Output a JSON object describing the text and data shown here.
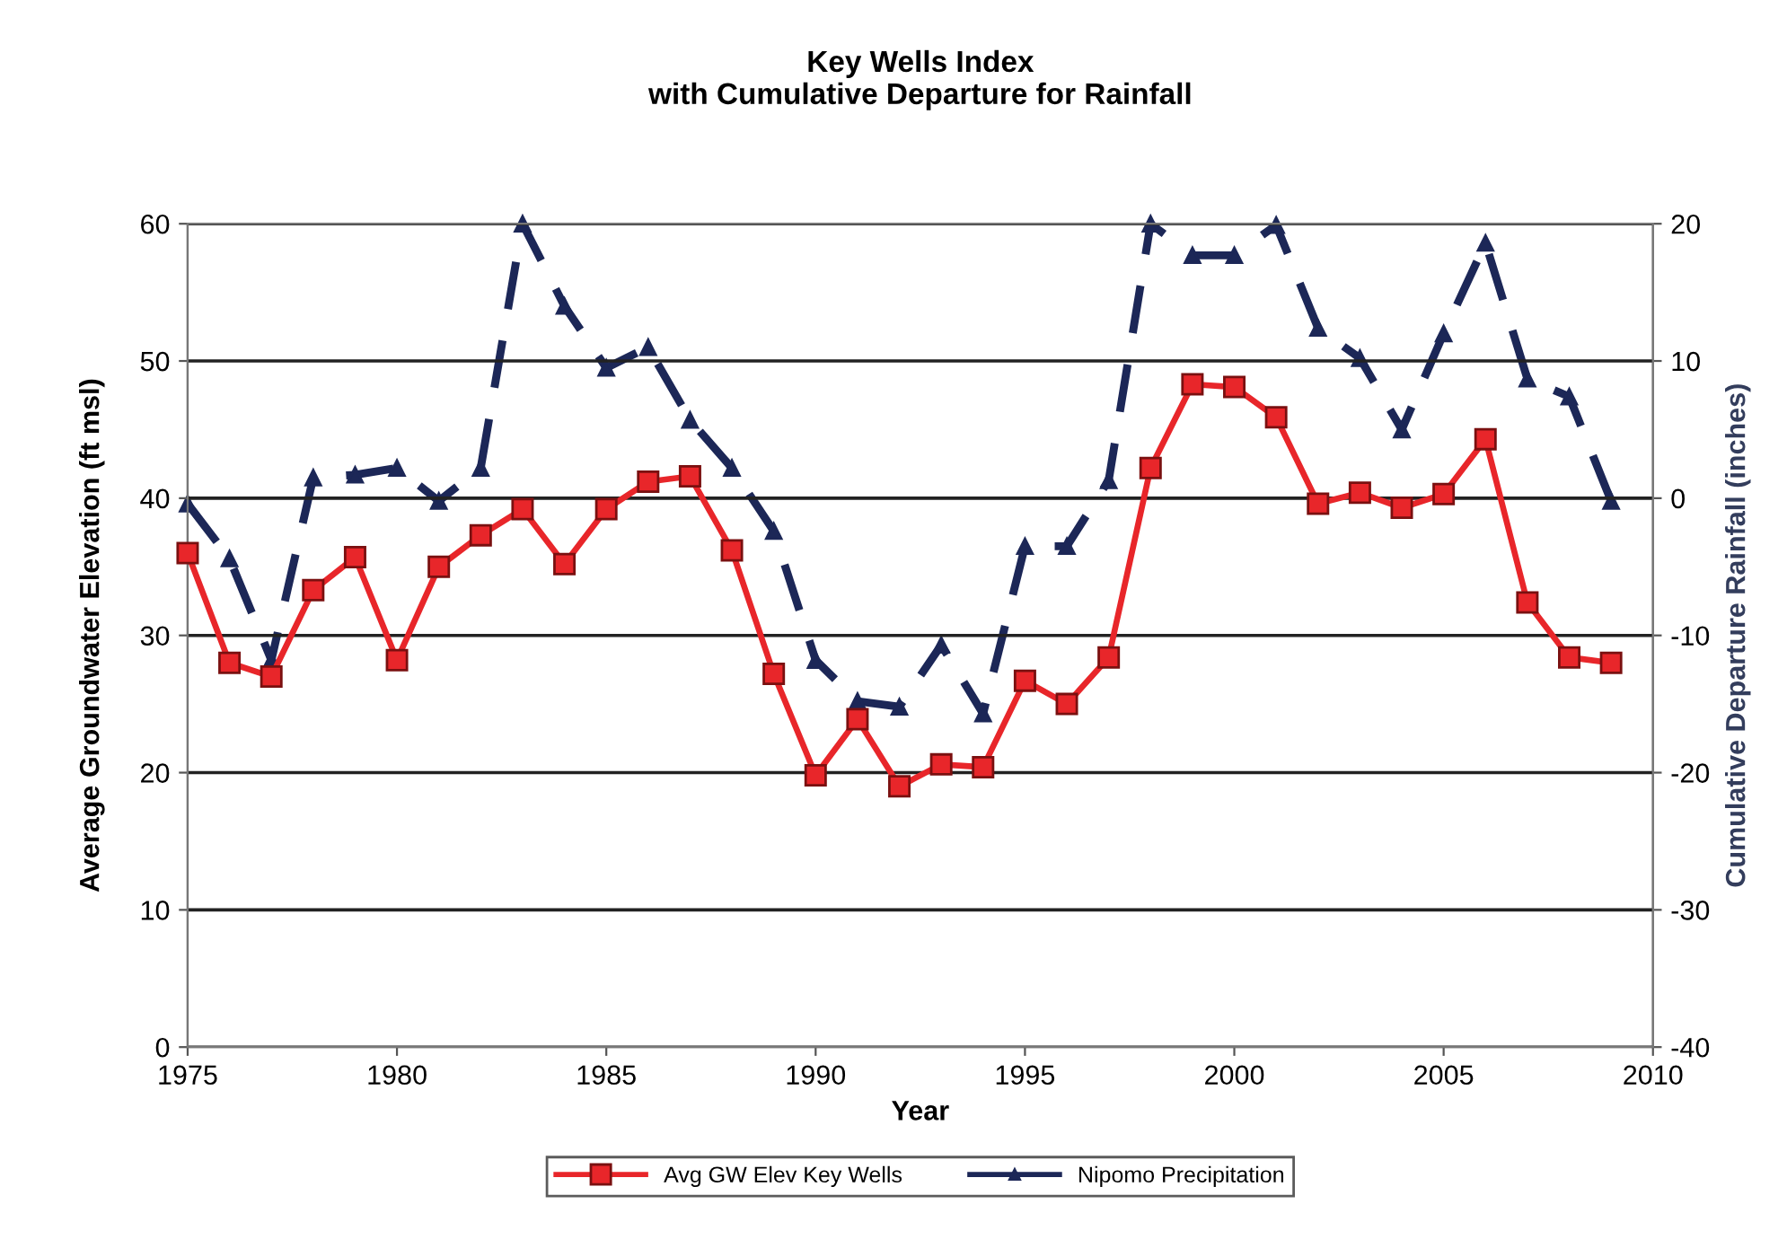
{
  "chart_data": {
    "type": "line",
    "title": "Key Wells Index\nwith Cumulative Departure for Rainfall",
    "xlabel": "Year",
    "ylabel": "Average Groundwater Elevation (ft msl)",
    "y2label": "Cumulative Departure Rainfall (inches)",
    "x": [
      1975,
      1976,
      1977,
      1978,
      1979,
      1980,
      1981,
      1982,
      1983,
      1984,
      1985,
      1986,
      1987,
      1988,
      1989,
      1990,
      1991,
      1992,
      1993,
      1994,
      1995,
      1996,
      1997,
      1998,
      1999,
      2000,
      2001,
      2002,
      2003,
      2004,
      2005,
      2006,
      2007,
      2008,
      2009
    ],
    "series": [
      {
        "name": "Avg GW Elev Key Wells",
        "color": "#e8262a",
        "marker": "square",
        "line_style": "solid",
        "values": [
          36,
          28,
          27,
          33.3,
          35.7,
          28.2,
          35,
          37.3,
          39.2,
          35.2,
          39.2,
          41.2,
          41.6,
          36.2,
          27.2,
          19.8,
          23.9,
          19,
          20.6,
          20.4,
          26.7,
          25,
          28.4,
          42.2,
          48.3,
          48.1,
          45.9,
          39.6,
          40.4,
          39.3,
          40.3,
          44.3,
          32.4,
          28.4,
          28
        ]
      },
      {
        "name": "Nipomo Precipitation",
        "color": "#1c2757",
        "marker": "triangle",
        "line_style": "dashed",
        "axis": "y2",
        "values": [
          -0.4,
          -4.4,
          -11.8,
          1.5,
          1.7,
          2.2,
          -0.2,
          2.2,
          20,
          14,
          9.5,
          11,
          5.7,
          2.2,
          -2.4,
          -11.8,
          -14.8,
          -15.2,
          -10.7,
          -15.7,
          -3.5,
          -3.5,
          1.3,
          20,
          17.7,
          17.7,
          19.9,
          12.4,
          10.2,
          5,
          12,
          18.6,
          8.7,
          7.4,
          -0.2
        ]
      }
    ],
    "xlim": [
      1975,
      2010
    ],
    "xticks": [
      1975,
      1980,
      1985,
      1990,
      1995,
      2000,
      2005,
      2010
    ],
    "ylim": [
      0,
      60
    ],
    "yticks": [
      0,
      10,
      20,
      30,
      40,
      50,
      60
    ],
    "y2lim": [
      -40,
      20
    ],
    "y2ticks": [
      -40,
      -30,
      -20,
      -10,
      0,
      10,
      20
    ],
    "grid": "y",
    "legend": "bottom"
  }
}
